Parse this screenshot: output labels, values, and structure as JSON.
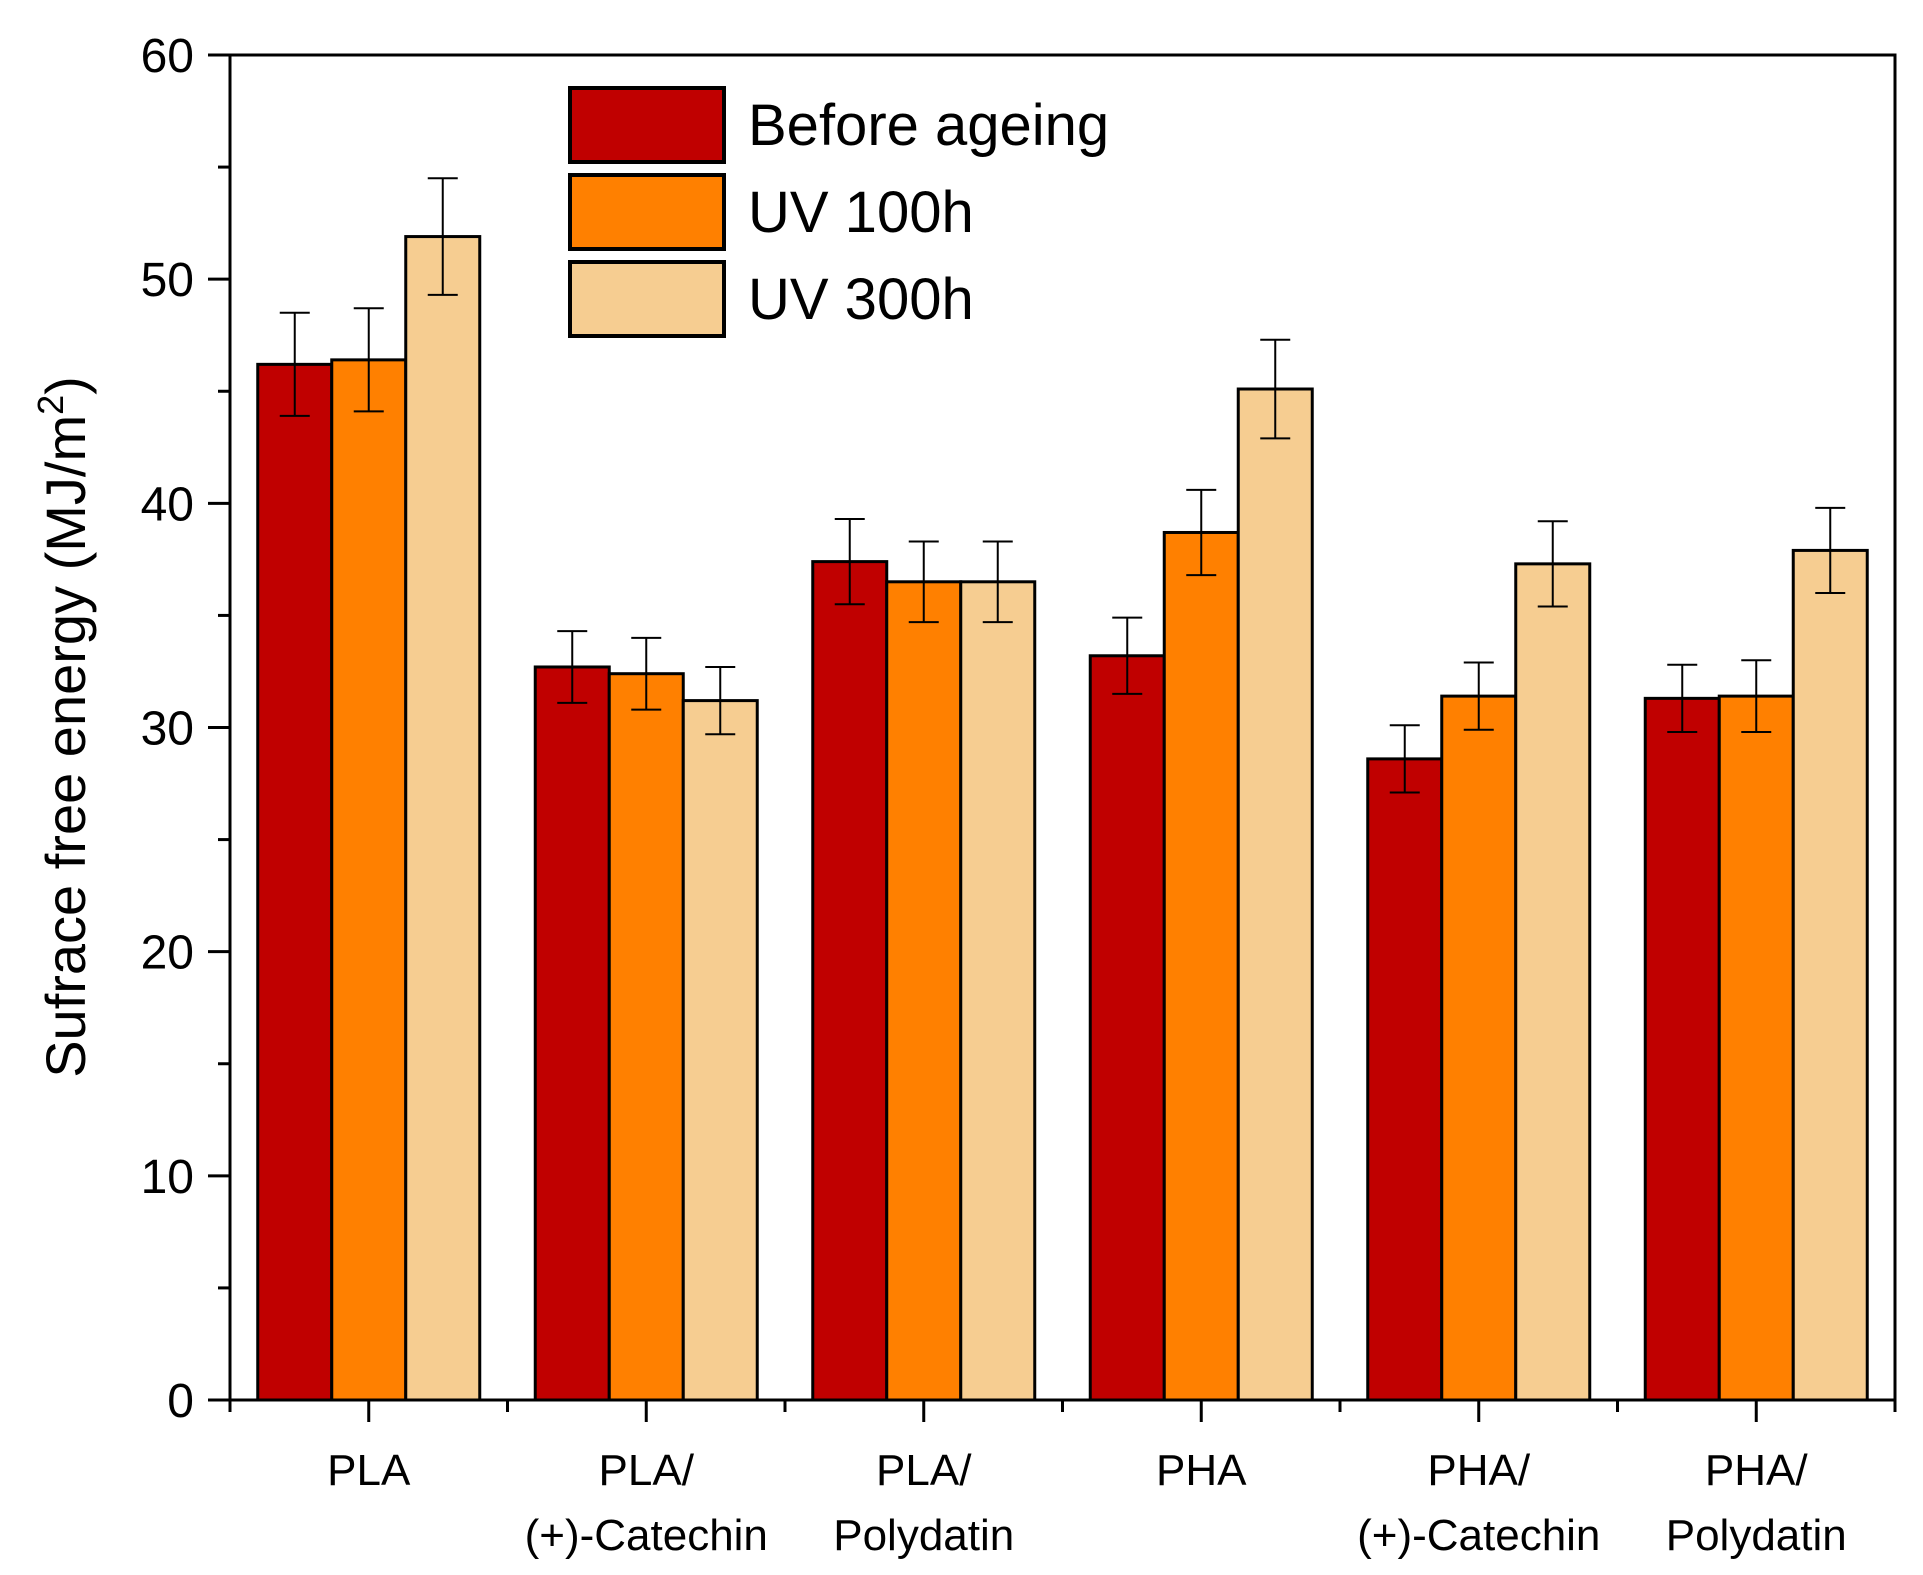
{
  "chart_data": {
    "type": "bar",
    "title": "",
    "xlabel": "",
    "ylabel": {
      "text": "Sufrace free energy (MJ/m",
      "superscript": "2",
      "close": ")"
    },
    "ylim": [
      0,
      60
    ],
    "yticks": [
      "0",
      "10",
      "20",
      "30",
      "40",
      "50",
      "60"
    ],
    "ytick_values": [
      0,
      10,
      20,
      30,
      40,
      50,
      60
    ],
    "yminor_step": 5,
    "grid": false,
    "legend_position": "top-left",
    "categories": [
      {
        "line1": "PLA",
        "line2": ""
      },
      {
        "line1": "PLA/",
        "line2": "(+)-Catechin"
      },
      {
        "line1": "PLA/",
        "line2": "Polydatin"
      },
      {
        "line1": "PHA",
        "line2": ""
      },
      {
        "line1": "PHA/",
        "line2": "(+)-Catechin"
      },
      {
        "line1": "PHA/",
        "line2": "Polydatin"
      }
    ],
    "series": [
      {
        "name": "Before ageing",
        "color": "#C00000",
        "values": [
          46.2,
          32.7,
          37.4,
          33.2,
          28.6,
          31.3
        ],
        "errors": [
          2.3,
          1.6,
          1.9,
          1.7,
          1.5,
          1.5
        ]
      },
      {
        "name": "UV 100h",
        "color": "#FF8000",
        "values": [
          46.4,
          32.4,
          36.5,
          38.7,
          31.4,
          31.4
        ],
        "errors": [
          2.3,
          1.6,
          1.8,
          1.9,
          1.5,
          1.6
        ]
      },
      {
        "name": "UV 300h",
        "color": "#F6CD91",
        "values": [
          51.9,
          31.2,
          36.5,
          45.1,
          37.3,
          37.9
        ],
        "errors": [
          2.6,
          1.5,
          1.8,
          2.2,
          1.9,
          1.9
        ]
      }
    ]
  }
}
